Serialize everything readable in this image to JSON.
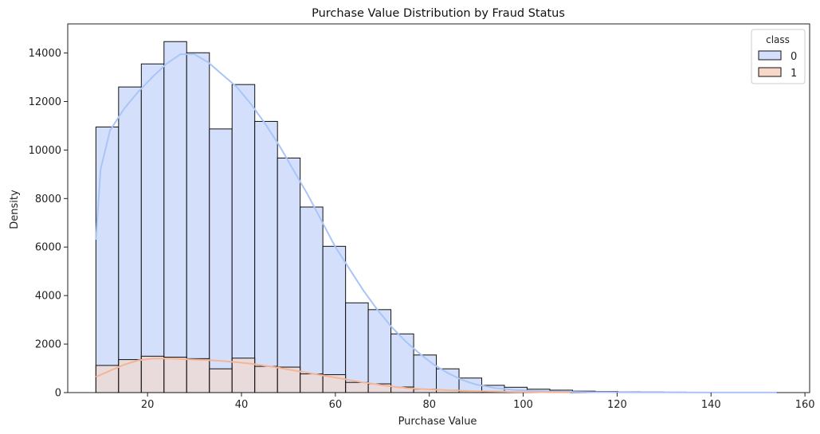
{
  "chart_data": {
    "type": "histogram",
    "title": "Purchase Value Distribution by Fraud Status",
    "xlabel": "Purchase Value",
    "ylabel": "Density",
    "xlim": [
      3,
      161
    ],
    "ylim": [
      0,
      15200
    ],
    "x_ticks": [
      20,
      40,
      60,
      80,
      100,
      120,
      140,
      160
    ],
    "y_ticks": [
      0,
      2000,
      4000,
      6000,
      8000,
      10000,
      12000,
      14000
    ],
    "bin_edges": [
      9,
      13.83,
      18.67,
      23.5,
      28.33,
      33.17,
      38,
      42.83,
      47.67,
      52.5,
      57.33,
      62.17,
      67,
      71.83,
      76.67,
      81.5,
      86.33,
      91.17,
      96,
      100.83,
      105.67,
      110.5,
      115.33,
      120.17,
      125,
      129.83,
      134.67,
      139.5,
      144.33,
      149.17,
      154
    ],
    "grid": false,
    "legend": {
      "title": "class",
      "position": "top-right"
    },
    "series": [
      {
        "name": "0",
        "fill": "#d4e0fb",
        "line_color": "#a9c5f7",
        "counts": [
          10950,
          12600,
          13550,
          14470,
          14010,
          10870,
          12700,
          11180,
          9670,
          7650,
          6030,
          3700,
          3420,
          2420,
          1550,
          980,
          600,
          300,
          220,
          140,
          100,
          60,
          45,
          30,
          25,
          20,
          15,
          10,
          8,
          5
        ],
        "kde": [
          [
            9,
            6300
          ],
          [
            10,
            9200
          ],
          [
            12,
            10800
          ],
          [
            15,
            11700
          ],
          [
            18,
            12400
          ],
          [
            21,
            13000
          ],
          [
            24,
            13550
          ],
          [
            27,
            13950
          ],
          [
            30,
            13950
          ],
          [
            33,
            13600
          ],
          [
            36,
            13100
          ],
          [
            39,
            12600
          ],
          [
            42,
            11900
          ],
          [
            45,
            11100
          ],
          [
            48,
            10200
          ],
          [
            51,
            9200
          ],
          [
            54,
            8200
          ],
          [
            57,
            7100
          ],
          [
            60,
            6000
          ],
          [
            63,
            5100
          ],
          [
            66,
            4200
          ],
          [
            69,
            3400
          ],
          [
            72,
            2700
          ],
          [
            75,
            2100
          ],
          [
            78,
            1600
          ],
          [
            81,
            1150
          ],
          [
            84,
            800
          ],
          [
            87,
            520
          ],
          [
            90,
            330
          ],
          [
            94,
            190
          ],
          [
            98,
            110
          ],
          [
            102,
            70
          ],
          [
            106,
            45
          ],
          [
            110,
            30
          ],
          [
            115,
            18
          ],
          [
            120,
            12
          ],
          [
            125,
            8
          ],
          [
            130,
            6
          ],
          [
            140,
            4
          ],
          [
            154,
            2
          ]
        ]
      },
      {
        "name": "1",
        "fill": "#f7d7c8",
        "line_color": "#f4b596",
        "counts": [
          1120,
          1360,
          1500,
          1460,
          1400,
          980,
          1420,
          1080,
          1050,
          770,
          740,
          420,
          360,
          230,
          140,
          100,
          60,
          30,
          20,
          15,
          10,
          6,
          4,
          3,
          2,
          2,
          1,
          1,
          1,
          1
        ],
        "kde": [
          [
            9,
            650
          ],
          [
            12,
            900
          ],
          [
            15,
            1150
          ],
          [
            18,
            1330
          ],
          [
            21,
            1400
          ],
          [
            24,
            1410
          ],
          [
            27,
            1390
          ],
          [
            30,
            1360
          ],
          [
            33,
            1340
          ],
          [
            36,
            1300
          ],
          [
            39,
            1250
          ],
          [
            42,
            1190
          ],
          [
            45,
            1110
          ],
          [
            48,
            1020
          ],
          [
            51,
            920
          ],
          [
            54,
            820
          ],
          [
            57,
            720
          ],
          [
            60,
            620
          ],
          [
            63,
            520
          ],
          [
            66,
            420
          ],
          [
            69,
            330
          ],
          [
            72,
            250
          ],
          [
            75,
            190
          ],
          [
            78,
            150
          ],
          [
            81,
            120
          ],
          [
            84,
            100
          ],
          [
            87,
            80
          ],
          [
            90,
            60
          ],
          [
            94,
            45
          ],
          [
            98,
            30
          ],
          [
            104,
            15
          ],
          [
            110,
            8
          ]
        ]
      }
    ]
  }
}
